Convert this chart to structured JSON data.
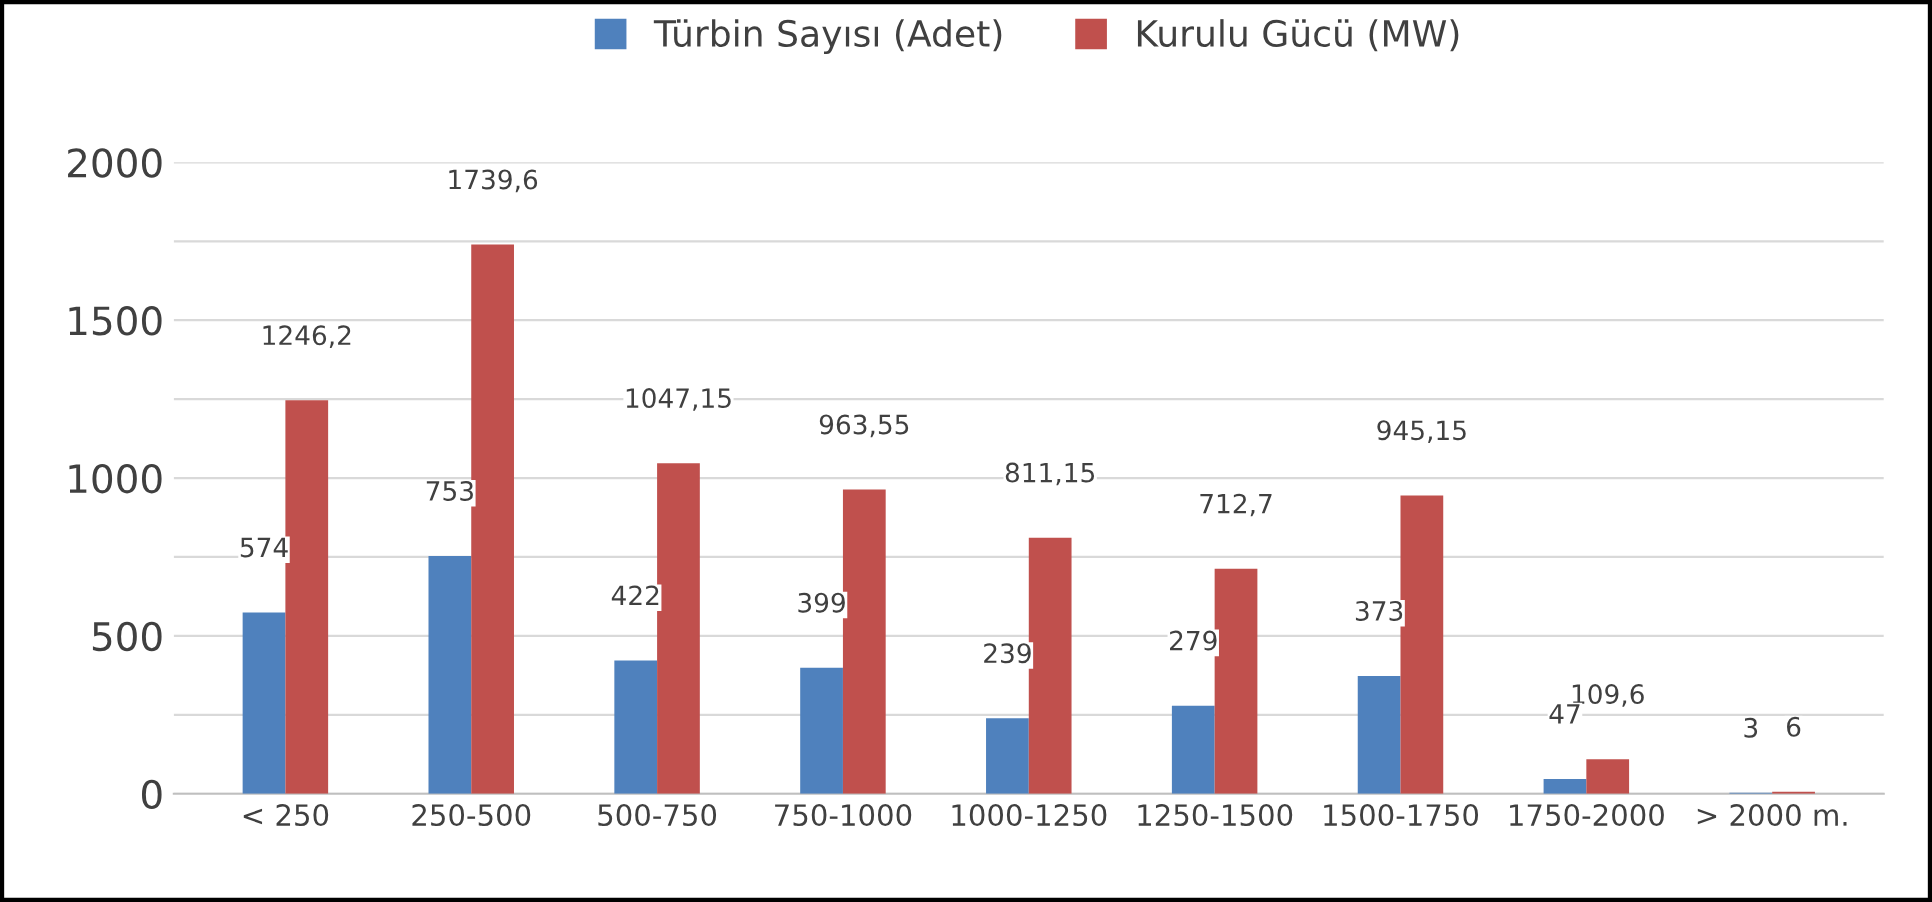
{
  "chart_data": {
    "type": "bar",
    "categories": [
      "< 250",
      "250-500",
      "500-750",
      "750-1000",
      "1000-1250",
      "1250-1500",
      "1500-1750",
      "1750-2000",
      "> 2000 m."
    ],
    "series": [
      {
        "name": "Türbin Sayısı (Adet)",
        "color": "#4f81bd",
        "values": [
          574,
          753,
          422,
          399,
          239,
          279,
          373,
          47,
          3
        ],
        "value_labels": [
          "574",
          "753",
          "422",
          "399",
          "239",
          "279",
          "373",
          "47",
          "3"
        ]
      },
      {
        "name": "Kurulu Gücü (MW)",
        "color": "#c0504d",
        "values": [
          1246.2,
          1739.6,
          1047.15,
          963.55,
          811.15,
          712.7,
          945.15,
          109.6,
          6
        ],
        "value_labels": [
          "1246,2",
          "1739,6",
          "1047,15",
          "963,55",
          "811,15",
          "712,7",
          "945,15",
          "109,6",
          "6"
        ]
      }
    ],
    "ylim": [
      0,
      2000
    ],
    "yticks": [
      0,
      {
        "value": 250,
        "label": null
      },
      500,
      {
        "value": 750,
        "label": null
      },
      1000,
      {
        "value": 1250,
        "label": null
      },
      1500,
      {
        "value": 1750,
        "label": null
      },
      2000
    ],
    "grid": "y",
    "legend": "top"
  }
}
